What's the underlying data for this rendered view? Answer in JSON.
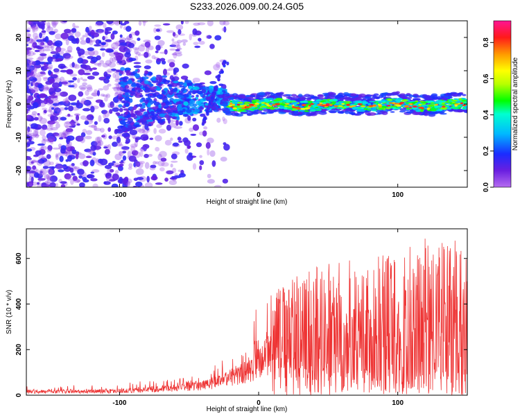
{
  "title": "S233.2026.009.00.24.G05",
  "chart_data": [
    {
      "id": "spectrogram",
      "type": "heatmap",
      "xlabel": "Height of straight line (km)",
      "ylabel": "Frequency (Hz)",
      "xlim": [
        -167,
        150
      ],
      "ylim": [
        -25,
        25
      ],
      "xticks": [
        -100,
        0,
        100
      ],
      "yticks": [
        -20,
        -10,
        0,
        10,
        20
      ],
      "colorbar": {
        "label": "Normalized spectral amplitude",
        "range": [
          0,
          0.92
        ],
        "ticks": [
          0.0,
          0.2,
          0.4,
          0.6,
          0.8
        ]
      },
      "description_regions": {
        "scattered_noise_x_range": [
          -167,
          -25
        ],
        "coherent_track_x_range": [
          -25,
          150
        ],
        "track_frequency_hz": 0
      }
    },
    {
      "id": "snr",
      "type": "line",
      "xlabel": "Height of straight line (km)",
      "ylabel": "SNR (10 * v/v)",
      "xlim": [
        -167,
        150
      ],
      "ylim": [
        0,
        730
      ],
      "xticks": [
        -100,
        0,
        100
      ],
      "yticks": [
        0,
        200,
        400,
        600
      ],
      "color": "#ee3333",
      "envelope": {
        "x": [
          -167,
          -120,
          -90,
          -60,
          -40,
          -25,
          -15,
          -5,
          0,
          5,
          10,
          20,
          40,
          60,
          80,
          100,
          120,
          140,
          150
        ],
        "baseline": [
          20,
          20,
          25,
          40,
          55,
          80,
          110,
          150,
          180,
          210,
          230,
          220,
          210,
          210,
          200,
          210,
          200,
          200,
          200
        ],
        "peak": [
          40,
          45,
          60,
          80,
          110,
          170,
          230,
          300,
          400,
          380,
          450,
          500,
          560,
          610,
          640,
          620,
          720,
          700,
          610
        ]
      }
    }
  ]
}
